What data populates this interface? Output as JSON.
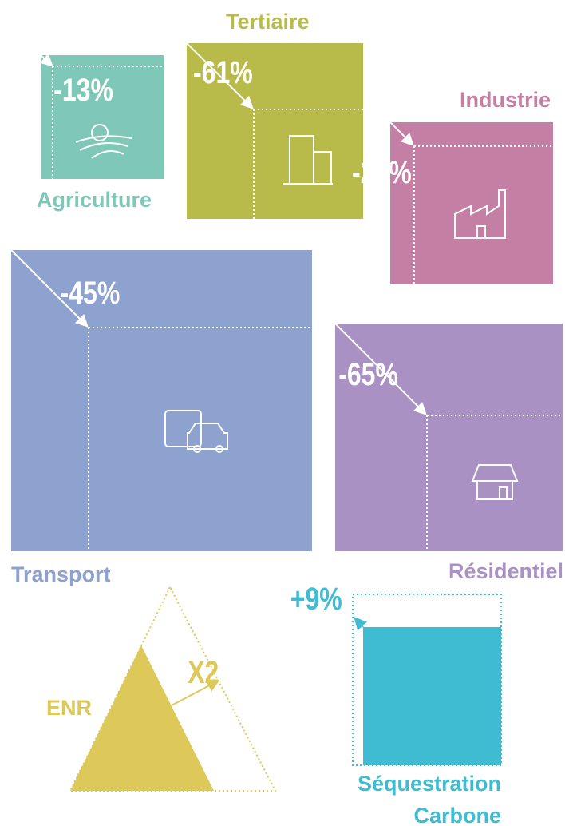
{
  "sectors": [
    {
      "label": "Agriculture",
      "value": "-13%"
    },
    {
      "label": "Tertiaire",
      "value": "-61%"
    },
    {
      "label": "Industrie",
      "value": "-26%"
    },
    {
      "label": "Transport",
      "value": "-45%"
    },
    {
      "label": "Résidentiel",
      "value": "-65%"
    }
  ],
  "enr": {
    "label": "ENR",
    "value": "X2"
  },
  "sequestration": {
    "label_line1": "Séquestration",
    "label_line2": "Carbone",
    "value": "+9%"
  }
}
